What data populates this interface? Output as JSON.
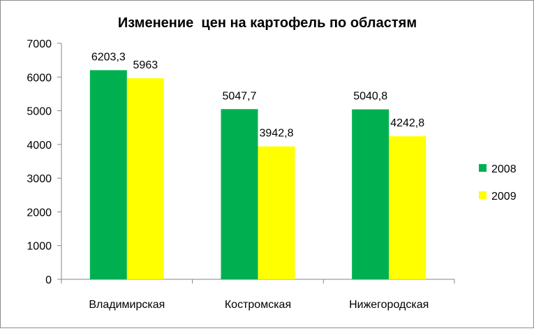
{
  "chart_data": {
    "type": "bar",
    "title": "Изменение  цен на картофель по областям",
    "categories": [
      "Владимирская",
      "Костромская",
      "Нижегородская"
    ],
    "series": [
      {
        "name": "2008",
        "values": [
          6203.3,
          5047.7,
          5040.8
        ],
        "labels": [
          "6203,3",
          "5047,7",
          "5040,8"
        ],
        "color": "#00b050"
      },
      {
        "name": "2009",
        "values": [
          5963,
          3942.8,
          4242.8
        ],
        "labels": [
          "5963",
          "3942,8",
          "4242,8"
        ],
        "color": "#ffff00"
      }
    ],
    "yticks": [
      "0",
      "1000",
      "2000",
      "3000",
      "4000",
      "5000",
      "6000",
      "7000"
    ],
    "ylim": [
      0,
      7000
    ],
    "xlabel": "",
    "ylabel": "",
    "grid": false,
    "legend_position": "right"
  }
}
